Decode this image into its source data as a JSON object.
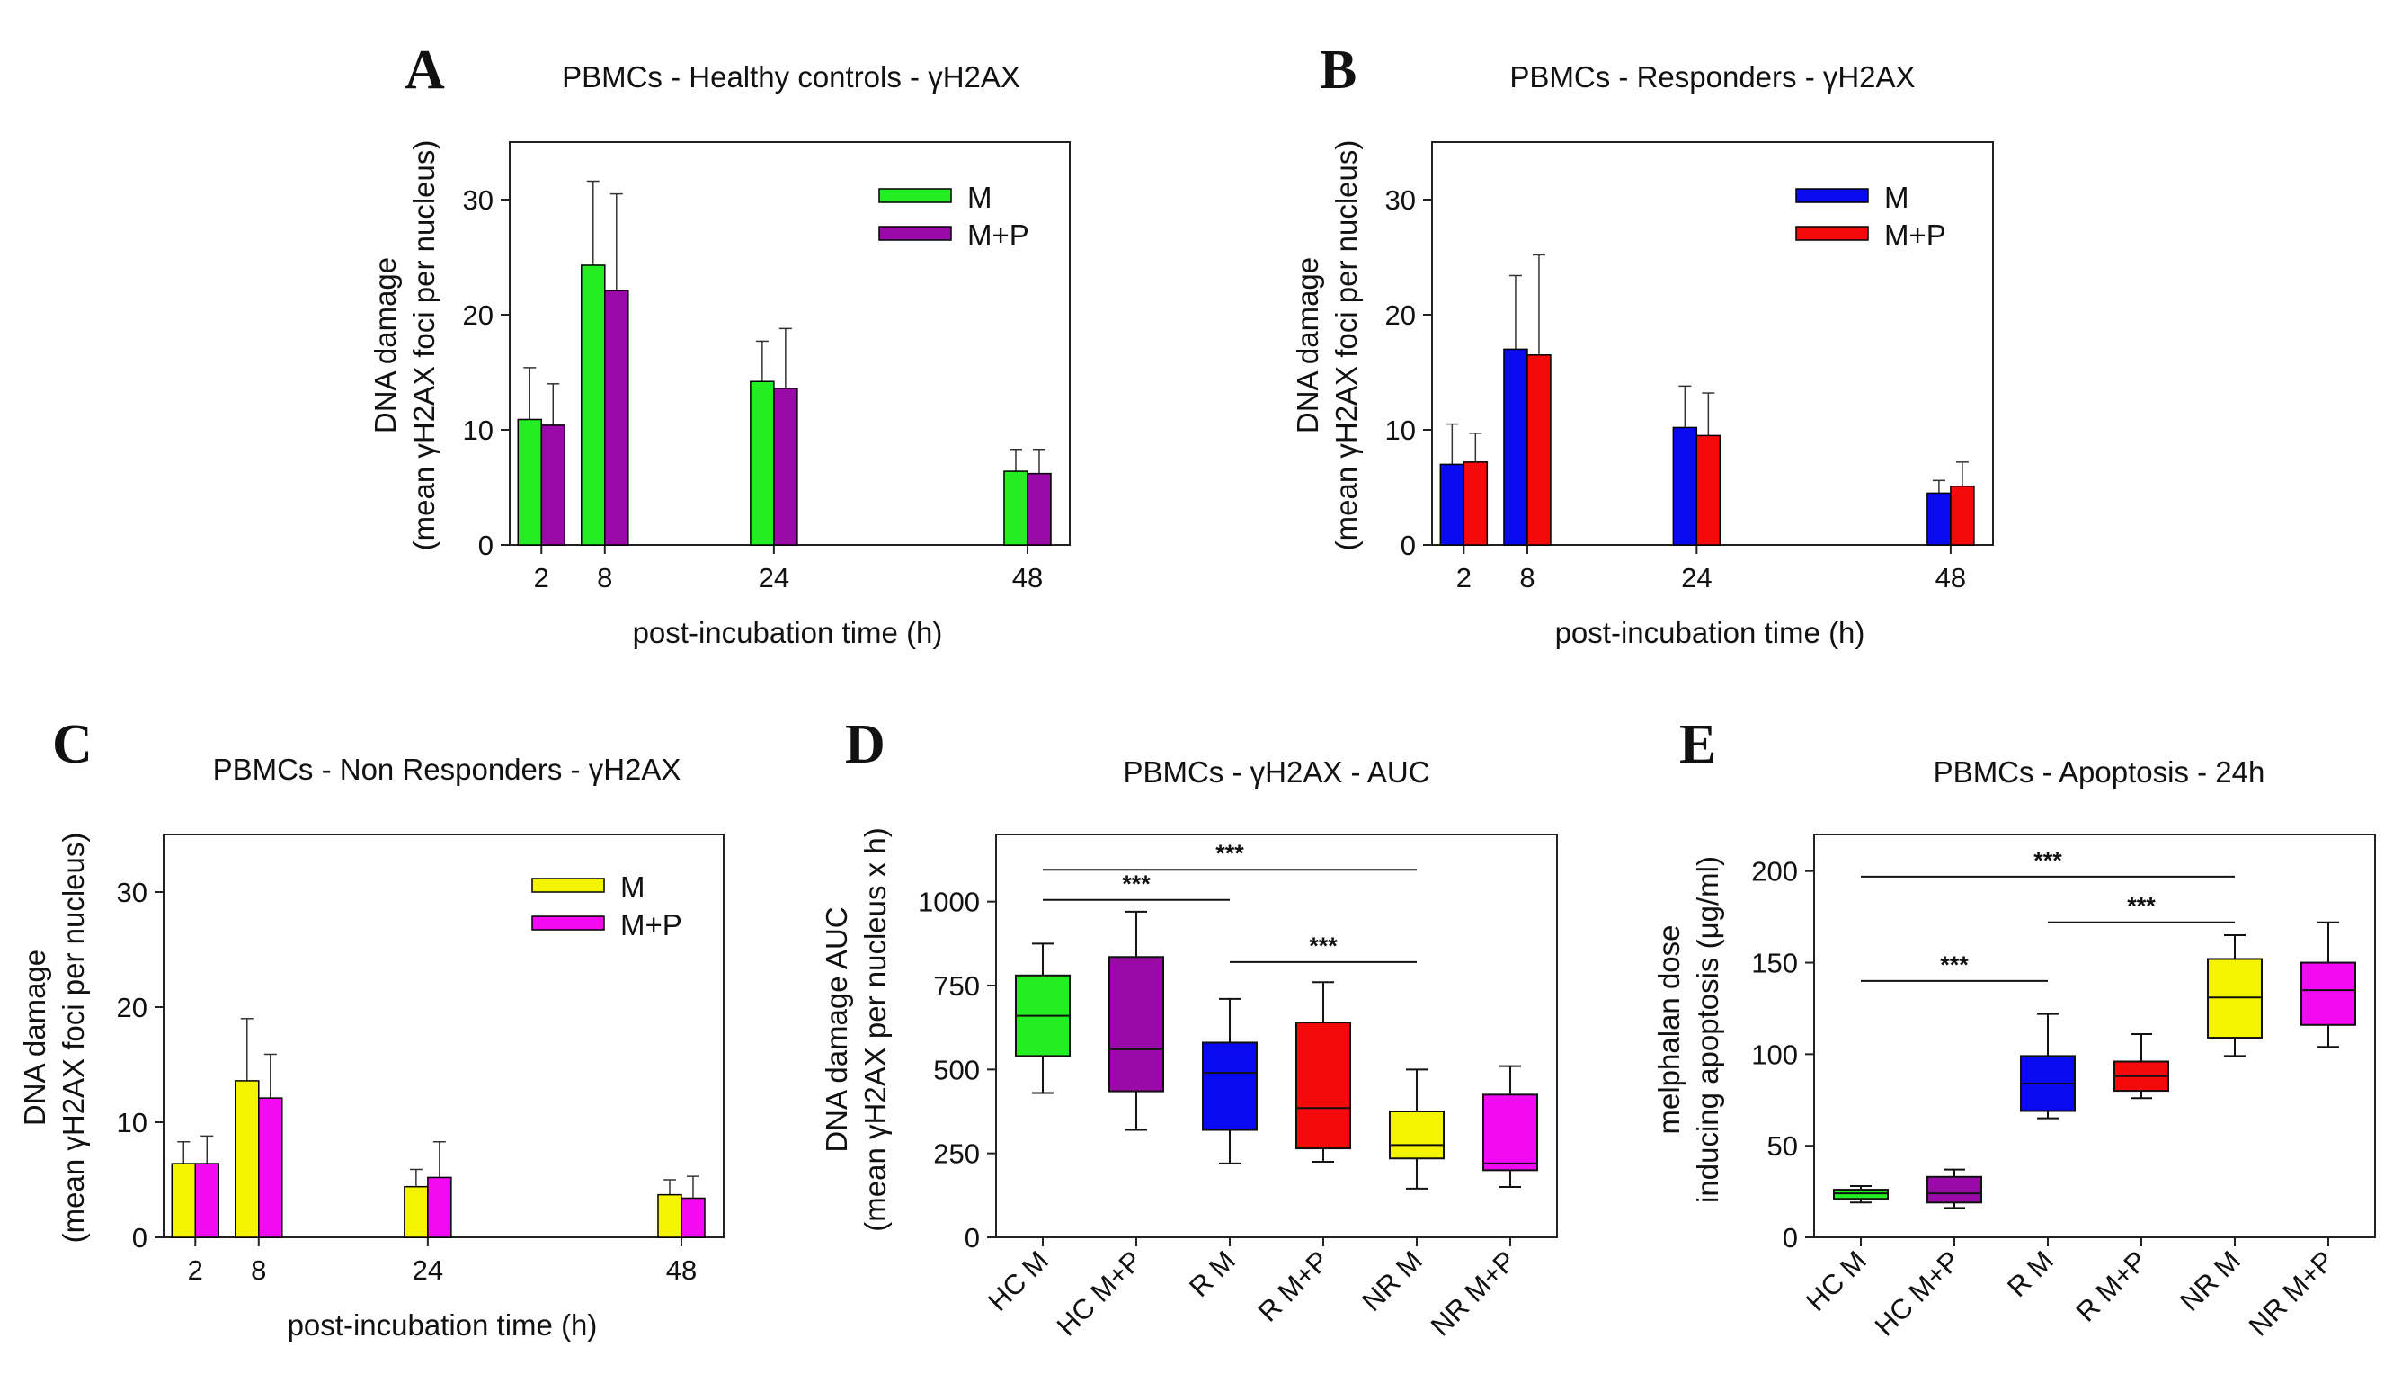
{
  "figure": {
    "label": "PBMC DNA damage and apoptosis figure"
  },
  "chart_data": [
    {
      "panel": "A",
      "type": "bar",
      "title": "PBMCs - Healthy controls - γH2AX",
      "xlabel": "post-incubation time (h)",
      "ylabel": "DNA damage",
      "ylabel2": "(mean γH2AX foci per nucleus)",
      "ylim": [
        0,
        35
      ],
      "yticks": [
        0,
        10,
        20,
        30
      ],
      "categories": [
        "2",
        "8",
        "24",
        "48"
      ],
      "x": [
        2,
        8,
        24,
        48
      ],
      "xlim": [
        -1,
        52
      ],
      "legend_position": "top-right",
      "series": [
        {
          "name": "M",
          "color": "#22ee22",
          "values": [
            10.9,
            24.3,
            14.2,
            6.4
          ],
          "err": [
            4.5,
            7.3,
            3.5,
            1.9
          ]
        },
        {
          "name": "M+P",
          "color": "#9a0aa8",
          "values": [
            10.4,
            22.1,
            13.6,
            6.2
          ],
          "err": [
            3.6,
            8.4,
            5.2,
            2.1
          ]
        }
      ]
    },
    {
      "panel": "B",
      "type": "bar",
      "title": "PBMCs - Responders - γH2AX",
      "xlabel": "post-incubation time (h)",
      "ylabel": "DNA damage",
      "ylabel2": "(mean γH2AX foci per nucleus)",
      "ylim": [
        0,
        35
      ],
      "yticks": [
        0,
        10,
        20,
        30
      ],
      "categories": [
        "2",
        "8",
        "24",
        "48"
      ],
      "x": [
        2,
        8,
        24,
        48
      ],
      "xlim": [
        -1,
        52
      ],
      "legend_position": "top-right",
      "series": [
        {
          "name": "M",
          "color": "#0a0af0",
          "values": [
            7.0,
            17.0,
            10.2,
            4.5
          ],
          "err": [
            3.5,
            6.4,
            3.6,
            1.1
          ]
        },
        {
          "name": "M+P",
          "color": "#f40a0a",
          "values": [
            7.2,
            16.5,
            9.5,
            5.1
          ],
          "err": [
            2.5,
            8.7,
            3.7,
            2.1
          ]
        }
      ]
    },
    {
      "panel": "C",
      "type": "bar",
      "title": "PBMCs - Non Responders - γH2AX",
      "xlabel": "post-incubation time (h)",
      "ylabel": "DNA damage",
      "ylabel2": "(mean γH2AX foci per nucleus)",
      "ylim": [
        0,
        35
      ],
      "yticks": [
        0,
        10,
        20,
        30
      ],
      "categories": [
        "2",
        "8",
        "24",
        "48"
      ],
      "x": [
        2,
        8,
        24,
        48
      ],
      "xlim": [
        -1,
        52
      ],
      "legend_position": "top-right",
      "series": [
        {
          "name": "M",
          "color": "#f4f400",
          "values": [
            6.4,
            13.6,
            4.4,
            3.7
          ],
          "err": [
            1.9,
            5.4,
            1.5,
            1.3
          ]
        },
        {
          "name": "M+P",
          "color": "#f20af2",
          "values": [
            6.4,
            12.1,
            5.2,
            3.4
          ],
          "err": [
            2.4,
            3.8,
            3.1,
            1.9
          ]
        }
      ]
    },
    {
      "panel": "D",
      "type": "box",
      "title": "PBMCs - γH2AX - AUC",
      "ylabel": "DNA damage AUC",
      "ylabel2": "(mean γH2AX per nucleus x h)",
      "ylim": [
        0,
        1200
      ],
      "yticks": [
        0,
        250,
        500,
        750,
        1000
      ],
      "categories": [
        "HC M",
        "HC M+P",
        "R M",
        "R M+P",
        "NR M",
        "NR M+P"
      ],
      "boxes": [
        {
          "color": "#22ee22",
          "min": 430,
          "q1": 540,
          "median": 660,
          "q3": 780,
          "max": 875
        },
        {
          "color": "#9a0aa8",
          "min": 320,
          "q1": 435,
          "median": 560,
          "q3": 835,
          "max": 970
        },
        {
          "color": "#0a0af0",
          "min": 220,
          "q1": 320,
          "median": 490,
          "q3": 580,
          "max": 710
        },
        {
          "color": "#f40a0a",
          "min": 225,
          "q1": 265,
          "median": 385,
          "q3": 640,
          "max": 760
        },
        {
          "color": "#f4f400",
          "min": 145,
          "q1": 235,
          "median": 275,
          "q3": 375,
          "max": 500
        },
        {
          "color": "#f20af2",
          "min": 150,
          "q1": 200,
          "median": 220,
          "q3": 425,
          "max": 510
        }
      ],
      "significance": [
        {
          "from": 0,
          "to": 4,
          "value": 1095,
          "label": "***"
        },
        {
          "from": 0,
          "to": 2,
          "value": 1005,
          "label": "***"
        },
        {
          "from": 2,
          "to": 4,
          "value": 820,
          "label": "***"
        }
      ]
    },
    {
      "panel": "E",
      "type": "box",
      "title": "PBMCs - Apoptosis - 24h",
      "ylabel": "melphalan dose",
      "ylabel2": "inducing apoptosis (μg/ml)",
      "ylim": [
        0,
        220
      ],
      "yticks": [
        0,
        50,
        100,
        150,
        200
      ],
      "categories": [
        "HC M",
        "HC M+P",
        "R M",
        "R M+P",
        "NR M",
        "NR M+P"
      ],
      "boxes": [
        {
          "color": "#22ee22",
          "min": 19,
          "q1": 21,
          "median": 24,
          "q3": 26,
          "max": 28
        },
        {
          "color": "#9a0aa8",
          "min": 16,
          "q1": 19,
          "median": 24,
          "q3": 33,
          "max": 37
        },
        {
          "color": "#0a0af0",
          "min": 65,
          "q1": 69,
          "median": 84,
          "q3": 99,
          "max": 122
        },
        {
          "color": "#f40a0a",
          "min": 76,
          "q1": 80,
          "median": 88,
          "q3": 96,
          "max": 111
        },
        {
          "color": "#f4f400",
          "min": 99,
          "q1": 109,
          "median": 131,
          "q3": 152,
          "max": 165
        },
        {
          "color": "#f20af2",
          "min": 104,
          "q1": 116,
          "median": 135,
          "q3": 150,
          "max": 172
        }
      ],
      "significance": [
        {
          "from": 0,
          "to": 4,
          "value": 197,
          "label": "***"
        },
        {
          "from": 2,
          "to": 4,
          "value": 172,
          "label": "***"
        },
        {
          "from": 0,
          "to": 2,
          "value": 140,
          "label": "***"
        }
      ]
    }
  ]
}
